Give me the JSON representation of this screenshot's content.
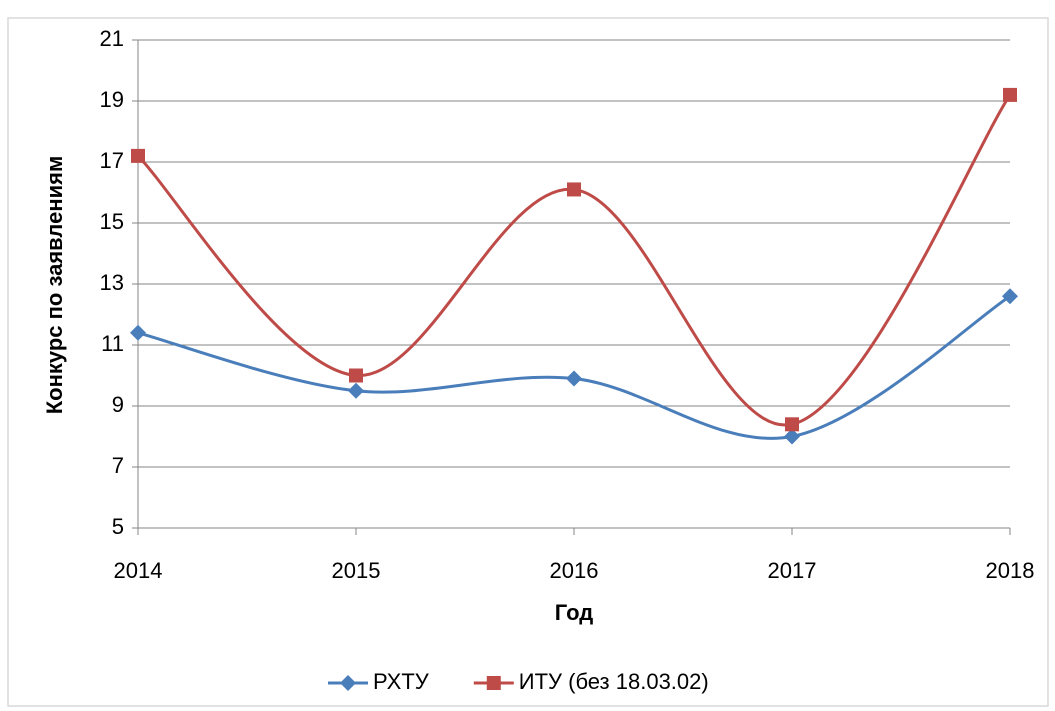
{
  "chart_data": {
    "type": "line",
    "categories": [
      "2014",
      "2015",
      "2016",
      "2017",
      "2018"
    ],
    "series": [
      {
        "name": "РХТУ",
        "color": "#4a7ebb",
        "marker": "diamond",
        "values": [
          11.4,
          9.5,
          9.9,
          8.0,
          12.6
        ]
      },
      {
        "name": "ИТУ (без 18.03.02)",
        "color": "#be4b48",
        "marker": "square",
        "values": [
          17.2,
          10.0,
          16.1,
          8.4,
          19.2
        ]
      }
    ],
    "ylim": [
      5,
      21
    ],
    "yticks": [
      5,
      7,
      9,
      11,
      13,
      15,
      17,
      19,
      21
    ],
    "grid": true,
    "smooth": true,
    "xlabel": "Год",
    "ylabel": "Конкурс по заявлениям",
    "legend": "bottom"
  }
}
